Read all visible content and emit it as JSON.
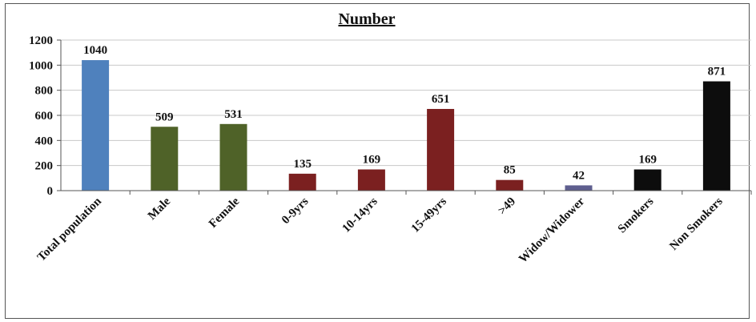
{
  "chart_data": {
    "type": "bar",
    "title": "Number",
    "xlabel": "",
    "ylabel": "",
    "ylim": [
      0,
      1200
    ],
    "yticks": [
      0,
      200,
      400,
      600,
      800,
      1000,
      1200
    ],
    "grid": true,
    "legend": "none",
    "categories": [
      "Total population",
      "Male",
      "Female",
      "0-9yrs",
      "10-14yrs",
      "15-49yrs",
      ">49",
      "Widow/Widower",
      "Smokers",
      "Non Smokers"
    ],
    "values": [
      1040,
      509,
      531,
      135,
      169,
      651,
      85,
      42,
      169,
      871
    ],
    "colors": [
      "#4f81bd",
      "#4f6228",
      "#4f6228",
      "#7b2020",
      "#7b2020",
      "#7b2020",
      "#7b2020",
      "#5f5f8f",
      "#0d0d0d",
      "#0d0d0d"
    ]
  }
}
